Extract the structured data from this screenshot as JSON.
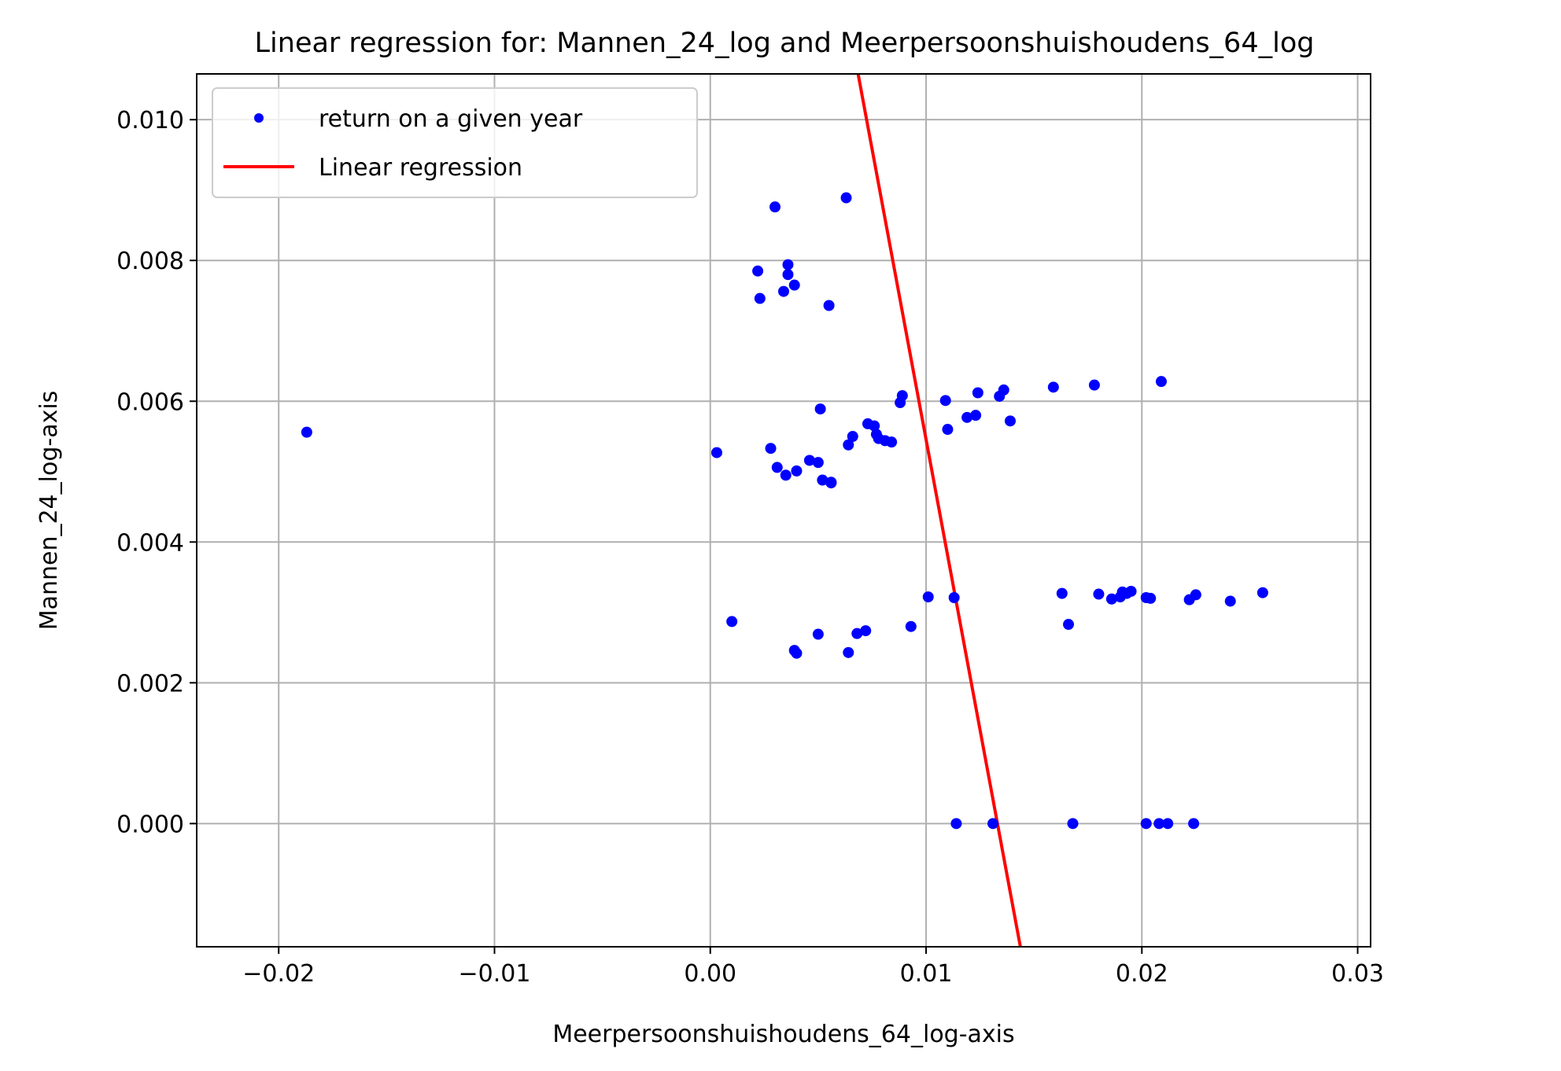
{
  "chart_data": {
    "type": "scatter",
    "title": "Linear regression for: Mannen_24_log and Meerpersoonshuishoudens_64_log",
    "xlabel": "Meerpersoonshuishoudens_64_log-axis",
    "ylabel": "Mannen_24_log-axis",
    "xlim": [
      -0.0238,
      0.0306
    ],
    "ylim": [
      -0.00175,
      0.01065
    ],
    "xticks": [
      -0.02,
      -0.01,
      0.0,
      0.01,
      0.02,
      0.03
    ],
    "xtick_labels": [
      "−0.02",
      "−0.01",
      "0.00",
      "0.01",
      "0.02",
      "0.03"
    ],
    "yticks": [
      0.0,
      0.002,
      0.004,
      0.006,
      0.008,
      0.01
    ],
    "ytick_labels": [
      "0.000",
      "0.002",
      "0.004",
      "0.006",
      "0.008",
      "0.010"
    ],
    "grid": true,
    "legend_position": "upper-left",
    "colors": {
      "points": "#0000ff",
      "line": "#ff0000",
      "grid": "#b0b0b0"
    },
    "series": [
      {
        "name": "return on a given year",
        "type": "scatter",
        "color": "#0000ff",
        "x": [
          -0.0187,
          0.0003,
          0.001,
          0.0022,
          0.0023,
          0.0028,
          0.003,
          0.0031,
          0.0034,
          0.0035,
          0.0036,
          0.0036,
          0.0039,
          0.004,
          0.0046,
          0.005,
          0.0051,
          0.0052,
          0.0055,
          0.0056,
          0.0056,
          0.0063,
          0.0064,
          0.0066,
          0.0073,
          0.0076,
          0.0077,
          0.0078,
          0.0081,
          0.0084,
          0.0088,
          0.0089,
          0.0109,
          0.011,
          0.0119,
          0.0123,
          0.0124,
          0.0134,
          0.0136,
          0.0139,
          0.0159,
          0.0178,
          0.0209,
          0.0039,
          0.004,
          0.005,
          0.0064,
          0.0068,
          0.0072,
          0.0093,
          0.0101,
          0.0113,
          0.0163,
          0.0166,
          0.018,
          0.0186,
          0.019,
          0.0191,
          0.0193,
          0.0195,
          0.0202,
          0.0204,
          0.0222,
          0.0225,
          0.0241,
          0.0256,
          0.0114,
          0.0131,
          0.0168,
          0.0202,
          0.0208,
          0.0212,
          0.0224
        ],
        "y": [
          0.00556,
          0.00527,
          0.00287,
          0.00785,
          0.00746,
          0.00533,
          0.00876,
          0.00506,
          0.00756,
          0.00495,
          0.0078,
          0.00794,
          0.00765,
          0.00501,
          0.00516,
          0.00513,
          0.00589,
          0.00488,
          0.00736,
          0.00485,
          0.00484,
          0.00889,
          0.00538,
          0.0055,
          0.00568,
          0.00565,
          0.00553,
          0.00547,
          0.00544,
          0.00542,
          0.00598,
          0.00608,
          0.00601,
          0.0056,
          0.00577,
          0.0058,
          0.00612,
          0.00607,
          0.00616,
          0.00572,
          0.0062,
          0.00623,
          0.00628,
          0.00246,
          0.00242,
          0.00269,
          0.00243,
          0.0027,
          0.00274,
          0.0028,
          0.00322,
          0.00321,
          0.00327,
          0.00283,
          0.00326,
          0.00319,
          0.00322,
          0.00329,
          0.00327,
          0.0033,
          0.00321,
          0.0032,
          0.00318,
          0.00325,
          0.00316,
          0.00328,
          0.0,
          0.0,
          0.0,
          0.0,
          0.0,
          0.0,
          0.0
        ]
      },
      {
        "name": "Linear regression",
        "type": "line",
        "color": "#ff0000",
        "x": [
          0.00685,
          0.01437
        ],
        "y": [
          0.01065,
          -0.00175
        ]
      }
    ]
  }
}
